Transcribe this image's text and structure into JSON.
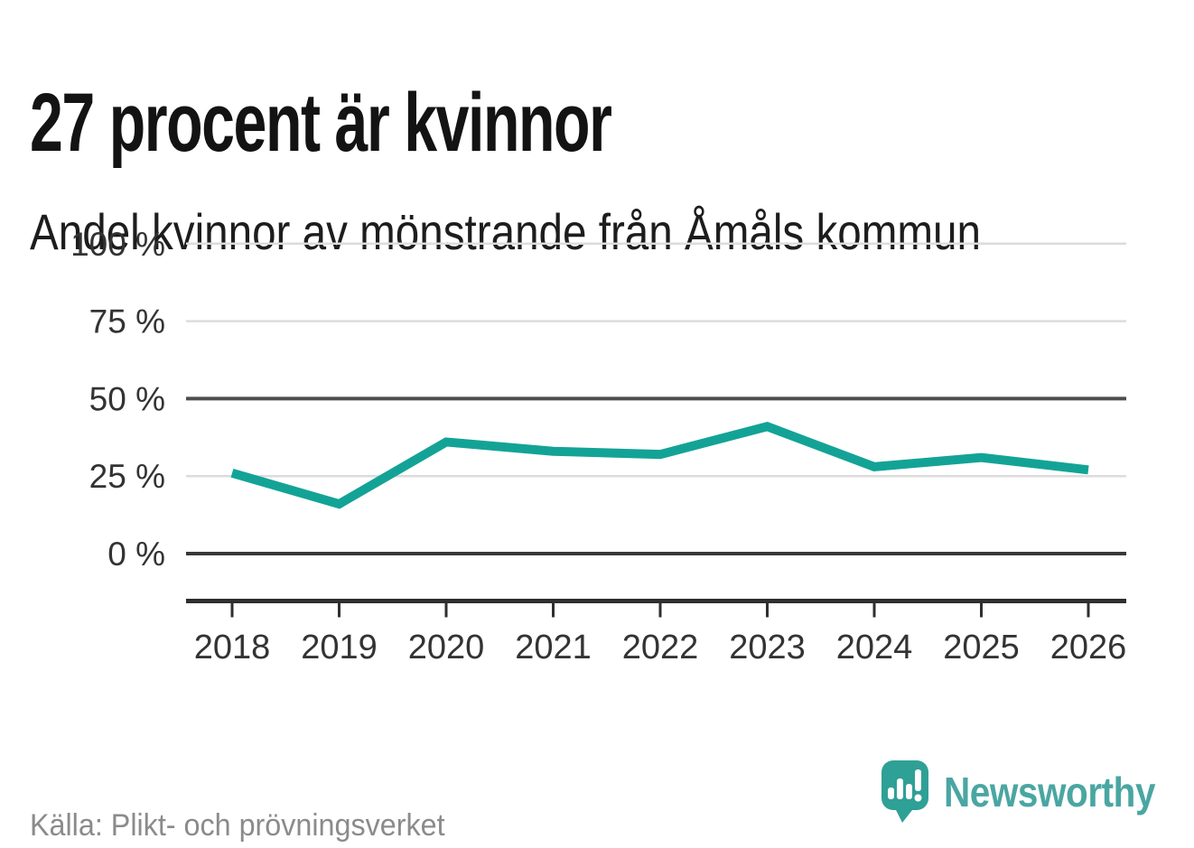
{
  "title": "27 procent är kvinnor",
  "subtitle": "Andel kvinnor av mönstrande från Åmåls kommun",
  "source_note": "Källa: Plikt- och prövningsverket",
  "brand": {
    "name": "Newsworthy",
    "logo_icon": "speech-bubble-bar-chart-exclamation-icon"
  },
  "colors": {
    "line": "#13a396",
    "grid_light": "#dcdcdc",
    "grid_emphasis": "#4d4d4d",
    "grid_baseline": "#383838",
    "axis": "#2f2f2f",
    "tick_text": "#333333",
    "title_text": "#131313",
    "source_text": "#8b8b8b",
    "brand_teal": "#4aa6a2",
    "logo_fill": "#2fa096"
  },
  "chart_data": {
    "type": "line",
    "title": "Andel kvinnor av mönstrande från Åmåls kommun",
    "headline_value": "27 procent är kvinnor",
    "unit": "%",
    "categories": [
      "2018",
      "2019",
      "2020",
      "2021",
      "2022",
      "2023",
      "2024",
      "2025",
      "2026"
    ],
    "series": [
      {
        "name": "Andel kvinnor av mönstrande",
        "values": [
          26,
          16,
          36,
          33,
          32,
          41,
          28,
          31,
          27
        ]
      }
    ],
    "xlabel": "",
    "ylabel": "",
    "ylim": [
      0,
      100
    ],
    "yticks": [
      {
        "value": 100,
        "label": "100 %"
      },
      {
        "value": 75,
        "label": "75 %"
      },
      {
        "value": 50,
        "label": "50 %"
      },
      {
        "value": 25,
        "label": "25 %"
      },
      {
        "value": 0,
        "label": "0 %"
      }
    ],
    "emphasized_ytick_values": [
      50,
      0
    ],
    "grid": "horizontal",
    "legend": "none"
  }
}
